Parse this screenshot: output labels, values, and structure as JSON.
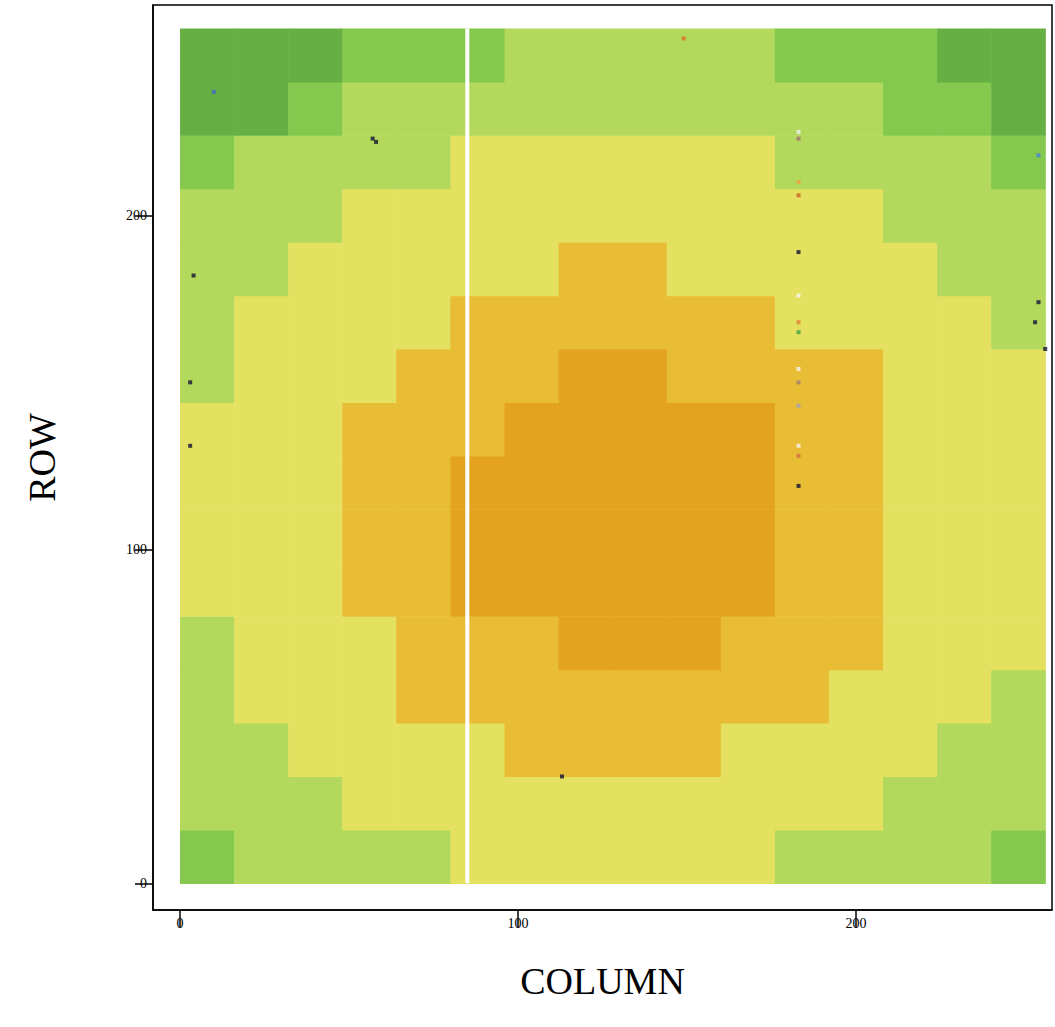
{
  "chart_data": {
    "type": "heatmap",
    "x_label": "COLUMN",
    "y_label": "ROW",
    "xlim": [
      -8,
      258
    ],
    "ylim": [
      -8,
      263
    ],
    "xticks": [
      0,
      100,
      200
    ],
    "yticks": [
      0,
      100,
      200
    ],
    "cell_size": 16,
    "cells": [
      [
        2,
        3,
        3,
        3,
        3,
        4,
        4,
        4,
        4,
        4,
        4,
        3,
        3,
        3,
        3,
        2
      ],
      [
        3,
        3,
        3,
        4,
        4,
        4,
        4,
        4,
        4,
        4,
        4,
        4,
        4,
        3,
        3,
        3
      ],
      [
        3,
        3,
        4,
        4,
        4,
        4,
        5,
        5,
        5,
        5,
        4,
        4,
        4,
        4,
        3,
        3
      ],
      [
        3,
        4,
        4,
        4,
        5,
        5,
        5,
        5,
        5,
        5,
        5,
        5,
        4,
        4,
        4,
        3
      ],
      [
        3,
        4,
        4,
        4,
        5,
        5,
        5,
        6,
        6,
        6,
        5,
        5,
        5,
        4,
        4,
        4
      ],
      [
        4,
        4,
        4,
        5,
        5,
        6,
        6,
        6,
        6,
        6,
        6,
        5,
        5,
        4,
        4,
        4
      ],
      [
        4,
        4,
        4,
        5,
        5,
        6,
        6,
        6,
        6,
        6,
        6,
        5,
        5,
        4,
        4,
        4
      ],
      [
        4,
        4,
        4,
        5,
        5,
        6,
        6,
        6,
        6,
        6,
        6,
        5,
        5,
        4,
        4,
        4
      ],
      [
        4,
        4,
        4,
        5,
        5,
        5,
        6,
        6,
        6,
        6,
        6,
        5,
        5,
        4,
        4,
        4
      ],
      [
        3,
        4,
        4,
        4,
        5,
        5,
        5,
        6,
        6,
        5,
        5,
        5,
        5,
        4,
        4,
        4
      ],
      [
        3,
        4,
        4,
        4,
        4,
        5,
        5,
        5,
        5,
        5,
        5,
        4,
        4,
        4,
        4,
        3
      ],
      [
        3,
        3,
        4,
        4,
        4,
        4,
        4,
        5,
        5,
        4,
        4,
        4,
        4,
        4,
        3,
        3
      ],
      [
        3,
        3,
        3,
        4,
        4,
        4,
        4,
        4,
        4,
        4,
        4,
        4,
        4,
        3,
        3,
        3
      ],
      [
        2,
        3,
        3,
        3,
        3,
        4,
        4,
        4,
        4,
        4,
        4,
        3,
        3,
        3,
        3,
        2
      ],
      [
        1,
        1,
        2,
        3,
        3,
        3,
        3,
        3,
        3,
        3,
        3,
        3,
        3,
        2,
        2,
        1
      ],
      [
        1,
        1,
        1,
        2,
        2,
        2,
        3,
        3,
        3,
        3,
        3,
        2,
        2,
        2,
        1,
        1
      ]
    ],
    "color_levels": [
      1,
      2,
      3,
      4,
      5,
      6
    ],
    "level_colors": [
      "#66b043",
      "#84c94e",
      "#b2d95c",
      "#e5e160",
      "#e8bd35",
      "#e3a31f"
    ],
    "bad_column": 85,
    "bad_pixels": {
      "points": [
        [
          10,
          237
        ],
        [
          57,
          223
        ],
        [
          58,
          222
        ],
        [
          4,
          182
        ],
        [
          3,
          150
        ],
        [
          3,
          131
        ],
        [
          113,
          32
        ],
        [
          149,
          253
        ],
        [
          183,
          225
        ],
        [
          183,
          223
        ],
        [
          183,
          210
        ],
        [
          183,
          206
        ],
        [
          183,
          189
        ],
        [
          183,
          176
        ],
        [
          183,
          168
        ],
        [
          183,
          165
        ],
        [
          183,
          154
        ],
        [
          183,
          150
        ],
        [
          183,
          143
        ],
        [
          183,
          131
        ],
        [
          183,
          128
        ],
        [
          183,
          119
        ],
        [
          254,
          218
        ],
        [
          253,
          168
        ],
        [
          254,
          174
        ],
        [
          256,
          160
        ]
      ],
      "colors": [
        "#3a6ad0",
        "#111133",
        "#111133",
        "#111133",
        "#111133",
        "#111133",
        "#111133",
        "#e07020",
        "#f0f0f0",
        "#a07070",
        "#f0a040",
        "#d06020",
        "#111133",
        "#f8f8f8",
        "#e08030",
        "#40a040",
        "#f8f8f8",
        "#a08070",
        "#a0a0b0",
        "#f8f0f0",
        "#d07040",
        "#111133",
        "#4a80e0",
        "#111133",
        "#111133",
        "#111133"
      ]
    }
  }
}
